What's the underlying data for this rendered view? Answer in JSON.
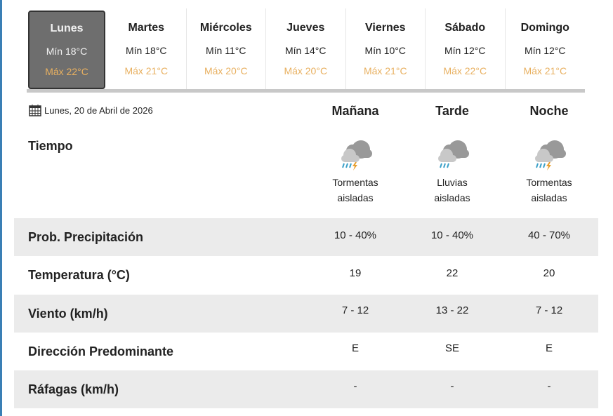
{
  "days": [
    {
      "name": "Lunes",
      "min": "Mín 18°C",
      "max": "Máx 22°C",
      "active": true
    },
    {
      "name": "Martes",
      "min": "Mín 18°C",
      "max": "Máx 21°C"
    },
    {
      "name": "Miércoles",
      "min": "Mín 11°C",
      "max": "Máx 20°C"
    },
    {
      "name": "Jueves",
      "min": "Mín 14°C",
      "max": "Máx 20°C"
    },
    {
      "name": "Viernes",
      "min": "Mín 10°C",
      "max": "Máx 21°C"
    },
    {
      "name": "Sábado",
      "min": "Mín 12°C",
      "max": "Máx 22°C"
    },
    {
      "name": "Domingo",
      "min": "Mín 12°C",
      "max": "Máx 21°C"
    }
  ],
  "date": "Lunes, 20 de Abril de 2026",
  "periods": [
    "Mañana",
    "Tarde",
    "Noche"
  ],
  "tiempo_label": "Tiempo",
  "weather": [
    {
      "l1": "Tormentas",
      "l2": "aisladas",
      "icon": "thunderstorm-icon"
    },
    {
      "l1": "Lluvias",
      "l2": "aisladas",
      "icon": "rain-icon"
    },
    {
      "l1": "Tormentas",
      "l2": "aisladas",
      "icon": "thunderstorm-icon"
    }
  ],
  "rows": [
    {
      "label": "Prob. Precipitación",
      "values": [
        "10 - 40%",
        "10 - 40%",
        "40 - 70%"
      ]
    },
    {
      "label": "Temperatura (°C)",
      "values": [
        "19",
        "22",
        "20"
      ]
    },
    {
      "label": "Viento (km/h)",
      "values": [
        "7 - 12",
        "13 - 22",
        "7 - 12"
      ]
    },
    {
      "label": "Dirección Predominante",
      "values": [
        "E",
        "SE",
        "E"
      ]
    },
    {
      "label": "Ráfagas (km/h)",
      "values": [
        "-",
        "-",
        "-"
      ]
    }
  ],
  "colors": {
    "max_temp": "#e8b060",
    "active_tab": "#6e6e6e",
    "row_alt": "#ebebeb"
  }
}
